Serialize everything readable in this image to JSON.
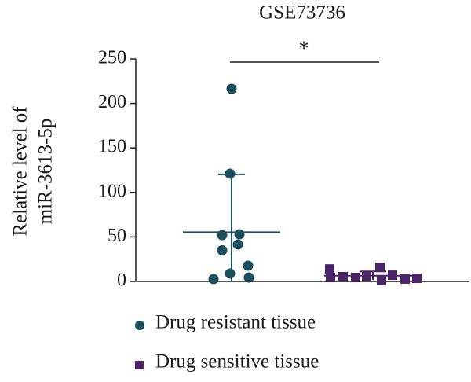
{
  "chart_data": {
    "type": "scatter",
    "title": "GSE73736",
    "ylabel": [
      "Relative level of",
      "miR-3613-5p"
    ],
    "categories": [
      "Drug resistant tissue",
      "Drug sensitive tissue"
    ],
    "ylim": [
      0,
      250
    ],
    "yticks": [
      0,
      50,
      100,
      150,
      200,
      250
    ],
    "series": [
      {
        "name": "Drug resistant tissue",
        "color": "#1b4f5e",
        "marker": "circle",
        "values": [
          216.4,
          121,
          52,
          53,
          35,
          41.5,
          17.7,
          8.8,
          2.7,
          4.4
        ],
        "mean": 55.3,
        "error": 65
      },
      {
        "name": "Drug sensitive tissue",
        "color": "#4b2466",
        "marker": "square",
        "values": [
          14,
          4.4,
          5.3,
          4.4,
          6.2,
          15.9,
          0.9,
          7,
          2.7,
          3.5
        ],
        "mean": 6.4,
        "error": 4.9
      }
    ],
    "annotation": "*"
  }
}
